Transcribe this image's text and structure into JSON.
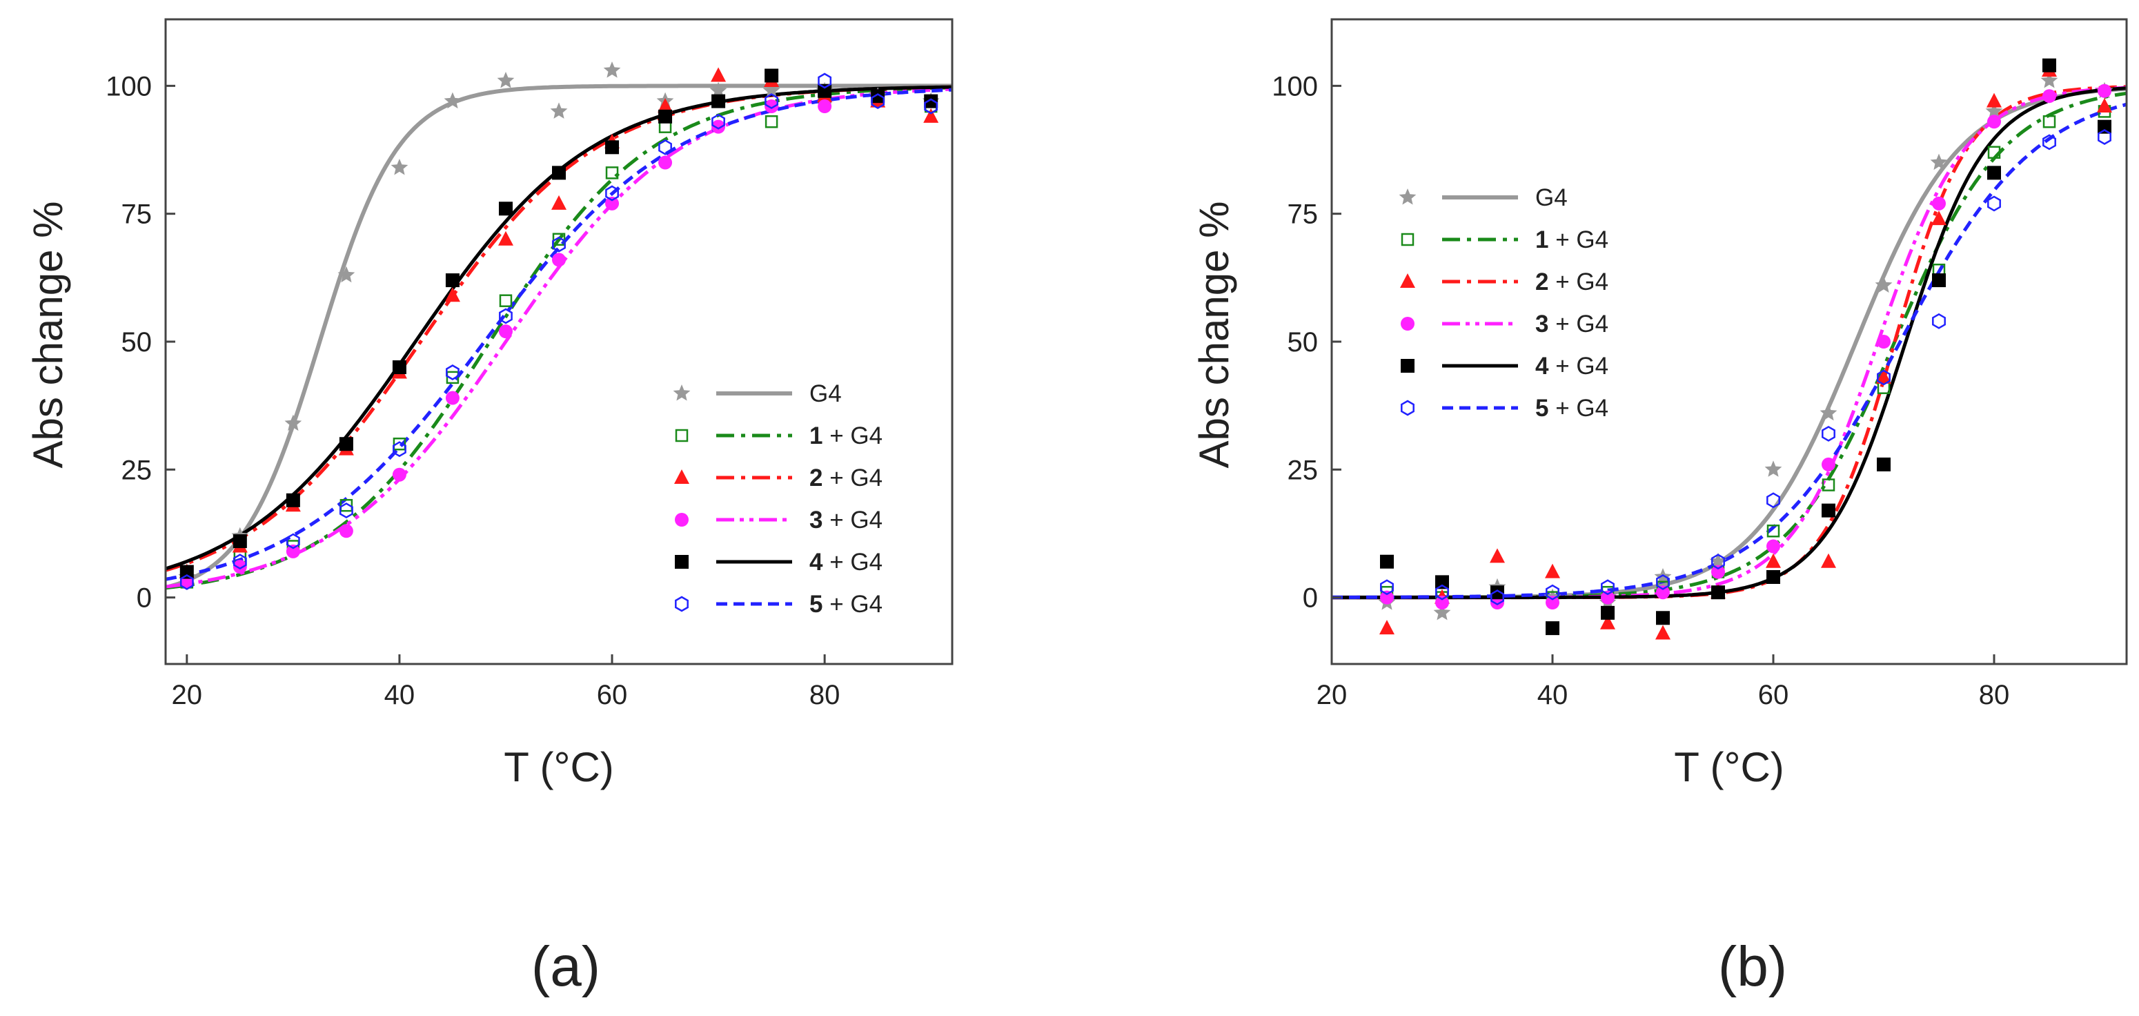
{
  "figure": {
    "panel_labels": [
      "(a)",
      "(b)"
    ]
  },
  "chart_data": [
    {
      "type": "scatter",
      "panel": "(a)",
      "xlabel": "T (°C)",
      "ylabel": "Abs change %",
      "xlim": [
        18,
        92
      ],
      "ylim": [
        -13,
        113
      ],
      "xticks": [
        20,
        40,
        60,
        80
      ],
      "yticks": [
        0,
        25,
        50,
        75,
        100
      ],
      "grid": false,
      "legend_position": "bottom-right",
      "series": [
        {
          "name": "G4",
          "num": "",
          "suffix": "G4",
          "marker": "star",
          "color": "#999999",
          "line_style": "solid",
          "points": [
            [
              20,
              4
            ],
            [
              25,
              12
            ],
            [
              30,
              34
            ],
            [
              35,
              63
            ],
            [
              40,
              84
            ],
            [
              45,
              97
            ],
            [
              50,
              101
            ],
            [
              55,
              95
            ],
            [
              60,
              103
            ],
            [
              65,
              97
            ],
            [
              70,
              99
            ],
            [
              75,
              99
            ],
            [
              80,
              99
            ],
            [
              85,
              98
            ],
            [
              90,
              97
            ]
          ],
          "fit": {
            "tm": 32.5,
            "k": 0.27
          }
        },
        {
          "name": "1 + G4",
          "num": "1",
          "suffix": " + G4",
          "marker": "open-square",
          "color": "#1a8a1a",
          "line_style": "dashdot",
          "points": [
            [
              20,
              3
            ],
            [
              25,
              8
            ],
            [
              30,
              10
            ],
            [
              35,
              18
            ],
            [
              40,
              30
            ],
            [
              45,
              43
            ],
            [
              50,
              58
            ],
            [
              55,
              70
            ],
            [
              60,
              83
            ],
            [
              65,
              92
            ],
            [
              70,
              97
            ],
            [
              75,
              93
            ],
            [
              80,
              97
            ],
            [
              85,
              98
            ],
            [
              90,
              96
            ]
          ],
          "fit": {
            "tm": 48.5,
            "k": 0.13
          }
        },
        {
          "name": "2 + G4",
          "num": "2",
          "suffix": " + G4",
          "marker": "triangle",
          "color": "#ff1a1a",
          "line_style": "dashdot",
          "points": [
            [
              20,
              5
            ],
            [
              25,
              10
            ],
            [
              30,
              18
            ],
            [
              35,
              29
            ],
            [
              40,
              44
            ],
            [
              45,
              59
            ],
            [
              50,
              70
            ],
            [
              55,
              77
            ],
            [
              60,
              89
            ],
            [
              65,
              96
            ],
            [
              70,
              102
            ],
            [
              75,
              101
            ],
            [
              80,
              98
            ],
            [
              85,
              97
            ],
            [
              90,
              94
            ]
          ],
          "fit": {
            "tm": 42,
            "k": 0.12
          }
        },
        {
          "name": "3 + G4",
          "num": "3",
          "suffix": " + G4",
          "marker": "filled-circle",
          "color": "#ff22ff",
          "line_style": "dashdotdot",
          "points": [
            [
              20,
              3
            ],
            [
              25,
              6
            ],
            [
              30,
              9
            ],
            [
              35,
              13
            ],
            [
              40,
              24
            ],
            [
              45,
              39
            ],
            [
              50,
              52
            ],
            [
              55,
              66
            ],
            [
              60,
              77
            ],
            [
              65,
              85
            ],
            [
              70,
              92
            ],
            [
              75,
              96
            ],
            [
              80,
              96
            ],
            [
              85,
              98
            ],
            [
              90,
              97
            ]
          ],
          "fit": {
            "tm": 50,
            "k": 0.12
          }
        },
        {
          "name": "4 + G4",
          "num": "4",
          "suffix": " + G4",
          "marker": "filled-square",
          "color": "#000000",
          "line_style": "solid",
          "points": [
            [
              20,
              5
            ],
            [
              25,
              11
            ],
            [
              30,
              19
            ],
            [
              35,
              30
            ],
            [
              40,
              45
            ],
            [
              45,
              62
            ],
            [
              50,
              76
            ],
            [
              55,
              83
            ],
            [
              60,
              88
            ],
            [
              65,
              94
            ],
            [
              70,
              97
            ],
            [
              75,
              102
            ],
            [
              80,
              99
            ],
            [
              85,
              98
            ],
            [
              90,
              97
            ]
          ],
          "fit": {
            "tm": 41.5,
            "k": 0.12
          }
        },
        {
          "name": "5 + G4",
          "num": "5",
          "suffix": " + G4",
          "marker": "open-hexagon",
          "color": "#2222ff",
          "line_style": "dashed",
          "points": [
            [
              20,
              3
            ],
            [
              25,
              7
            ],
            [
              30,
              11
            ],
            [
              35,
              17
            ],
            [
              40,
              29
            ],
            [
              45,
              44
            ],
            [
              50,
              55
            ],
            [
              55,
              69
            ],
            [
              60,
              79
            ],
            [
              65,
              88
            ],
            [
              70,
              93
            ],
            [
              75,
              97
            ],
            [
              80,
              101
            ],
            [
              85,
              97
            ],
            [
              90,
              96
            ]
          ],
          "fit": {
            "tm": 48,
            "k": 0.11
          }
        }
      ]
    },
    {
      "type": "scatter",
      "panel": "(b)",
      "xlabel": "T (°C)",
      "ylabel": "Abs change %",
      "xlim": [
        20,
        92
      ],
      "ylim": [
        -13,
        113
      ],
      "xticks": [
        20,
        40,
        60,
        80
      ],
      "yticks": [
        0,
        25,
        50,
        75,
        100
      ],
      "grid": false,
      "legend_position": "top-left",
      "series": [
        {
          "name": "G4",
          "num": "",
          "suffix": "G4",
          "marker": "star",
          "color": "#999999",
          "line_style": "solid",
          "points": [
            [
              25,
              -1
            ],
            [
              30,
              -3
            ],
            [
              35,
              2
            ],
            [
              40,
              0
            ],
            [
              45,
              -1
            ],
            [
              50,
              4
            ],
            [
              55,
              7
            ],
            [
              60,
              25
            ],
            [
              65,
              36
            ],
            [
              70,
              61
            ],
            [
              75,
              85
            ],
            [
              80,
              95
            ],
            [
              85,
              101
            ],
            [
              90,
              99
            ]
          ],
          "fit": {
            "tm": 67.5,
            "k": 0.21
          }
        },
        {
          "name": "1 + G4",
          "num": "1",
          "suffix": " + G4",
          "marker": "open-square",
          "color": "#1a8a1a",
          "line_style": "dashdot",
          "points": [
            [
              25,
              1
            ],
            [
              30,
              0
            ],
            [
              35,
              1
            ],
            [
              40,
              0
            ],
            [
              45,
              1
            ],
            [
              50,
              2
            ],
            [
              55,
              5
            ],
            [
              60,
              13
            ],
            [
              65,
              22
            ],
            [
              70,
              41
            ],
            [
              75,
              64
            ],
            [
              80,
              87
            ],
            [
              85,
              93
            ],
            [
              90,
              95
            ]
          ],
          "fit": {
            "tm": 71,
            "k": 0.2
          }
        },
        {
          "name": "2 + G4",
          "num": "2",
          "suffix": " + G4",
          "marker": "triangle",
          "color": "#ff1a1a",
          "line_style": "dashdot",
          "points": [
            [
              25,
              -6
            ],
            [
              30,
              0
            ],
            [
              35,
              8
            ],
            [
              40,
              5
            ],
            [
              45,
              -5
            ],
            [
              50,
              -7
            ],
            [
              55,
              1
            ],
            [
              60,
              7
            ],
            [
              65,
              7
            ],
            [
              70,
              43
            ],
            [
              75,
              74
            ],
            [
              80,
              97
            ],
            [
              85,
              103
            ],
            [
              90,
              96
            ]
          ],
          "fit": {
            "tm": 71,
            "k": 0.3
          }
        },
        {
          "name": "3 + G4",
          "num": "3",
          "suffix": " + G4",
          "marker": "filled-circle",
          "color": "#ff22ff",
          "line_style": "dashdotdot",
          "points": [
            [
              25,
              0
            ],
            [
              30,
              -1
            ],
            [
              35,
              -1
            ],
            [
              40,
              -1
            ],
            [
              45,
              0
            ],
            [
              50,
              1
            ],
            [
              55,
              5
            ],
            [
              60,
              10
            ],
            [
              65,
              26
            ],
            [
              70,
              50
            ],
            [
              75,
              77
            ],
            [
              80,
              93
            ],
            [
              85,
              98
            ],
            [
              90,
              99
            ]
          ],
          "fit": {
            "tm": 69.5,
            "k": 0.25
          }
        },
        {
          "name": "4 + G4",
          "num": "4",
          "suffix": " + G4",
          "marker": "filled-square",
          "color": "#000000",
          "line_style": "solid",
          "points": [
            [
              25,
              7
            ],
            [
              30,
              3
            ],
            [
              35,
              1
            ],
            [
              40,
              -6
            ],
            [
              45,
              -3
            ],
            [
              50,
              -4
            ],
            [
              55,
              1
            ],
            [
              60,
              4
            ],
            [
              65,
              17
            ],
            [
              70,
              26
            ],
            [
              75,
              62
            ],
            [
              80,
              83
            ],
            [
              85,
              104
            ],
            [
              90,
              92
            ]
          ],
          "fit": {
            "tm": 72,
            "k": 0.27
          }
        },
        {
          "name": "5 + G4",
          "num": "5",
          "suffix": " + G4",
          "marker": "open-hexagon",
          "color": "#2222ff",
          "line_style": "dashed",
          "points": [
            [
              25,
              2
            ],
            [
              30,
              1
            ],
            [
              35,
              0
            ],
            [
              40,
              1
            ],
            [
              45,
              2
            ],
            [
              50,
              3
            ],
            [
              55,
              7
            ],
            [
              60,
              19
            ],
            [
              65,
              32
            ],
            [
              70,
              43
            ],
            [
              75,
              54
            ],
            [
              80,
              77
            ],
            [
              85,
              89
            ],
            [
              90,
              90
            ]
          ],
          "fit": {
            "tm": 71.5,
            "k": 0.16
          }
        }
      ]
    }
  ]
}
